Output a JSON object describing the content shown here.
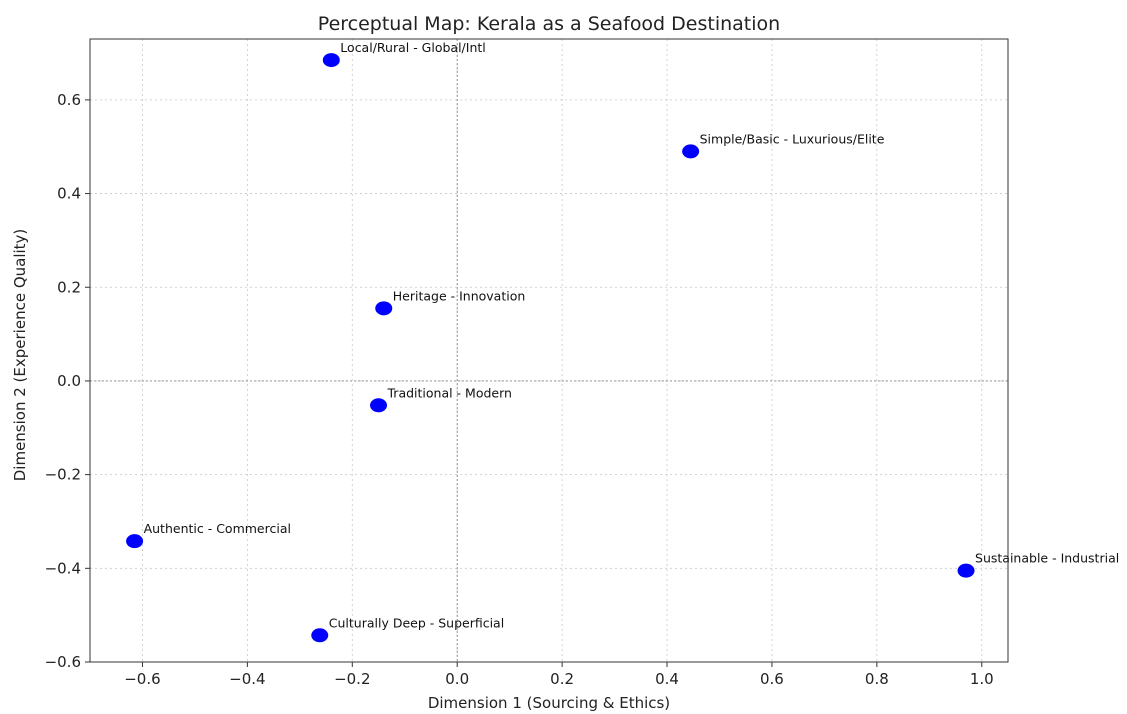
{
  "chart_data": {
    "type": "scatter",
    "title": "Perceptual Map: Kerala as a Seafood Destination",
    "xlabel": "Dimension 1 (Sourcing & Ethics)",
    "ylabel": "Dimension 2 (Experience Quality)",
    "xlim": [
      -0.7,
      1.05
    ],
    "ylim": [
      -0.6,
      0.73
    ],
    "xticks": [
      -0.6,
      -0.4,
      -0.2,
      0.0,
      0.2,
      0.4,
      0.6,
      0.8,
      1.0
    ],
    "xtick_labels": [
      "−0.6",
      "−0.4",
      "−0.2",
      "0.0",
      "0.2",
      "0.4",
      "0.6",
      "0.8",
      "1.0"
    ],
    "yticks": [
      -0.6,
      -0.4,
      -0.2,
      0.0,
      0.2,
      0.4,
      0.6
    ],
    "ytick_labels": [
      "−0.6",
      "−0.4",
      "−0.2",
      "0.0",
      "0.2",
      "0.4",
      "0.6"
    ],
    "grid": true,
    "reference_lines": {
      "x": 0.0,
      "y": 0.0
    },
    "marker_color": "#0000ff",
    "points": [
      {
        "label": "Local/Rural - Global/Intl",
        "x": -0.24,
        "y": 0.685
      },
      {
        "label": "Simple/Basic - Luxurious/Elite",
        "x": 0.445,
        "y": 0.49
      },
      {
        "label": "Heritage - Innovation",
        "x": -0.14,
        "y": 0.155
      },
      {
        "label": "Traditional - Modern",
        "x": -0.15,
        "y": -0.052
      },
      {
        "label": "Authentic - Commercial",
        "x": -0.615,
        "y": -0.342
      },
      {
        "label": "Sustainable - Industrial",
        "x": 0.97,
        "y": -0.405
      },
      {
        "label": "Culturally Deep - Superficial",
        "x": -0.262,
        "y": -0.543
      }
    ]
  }
}
